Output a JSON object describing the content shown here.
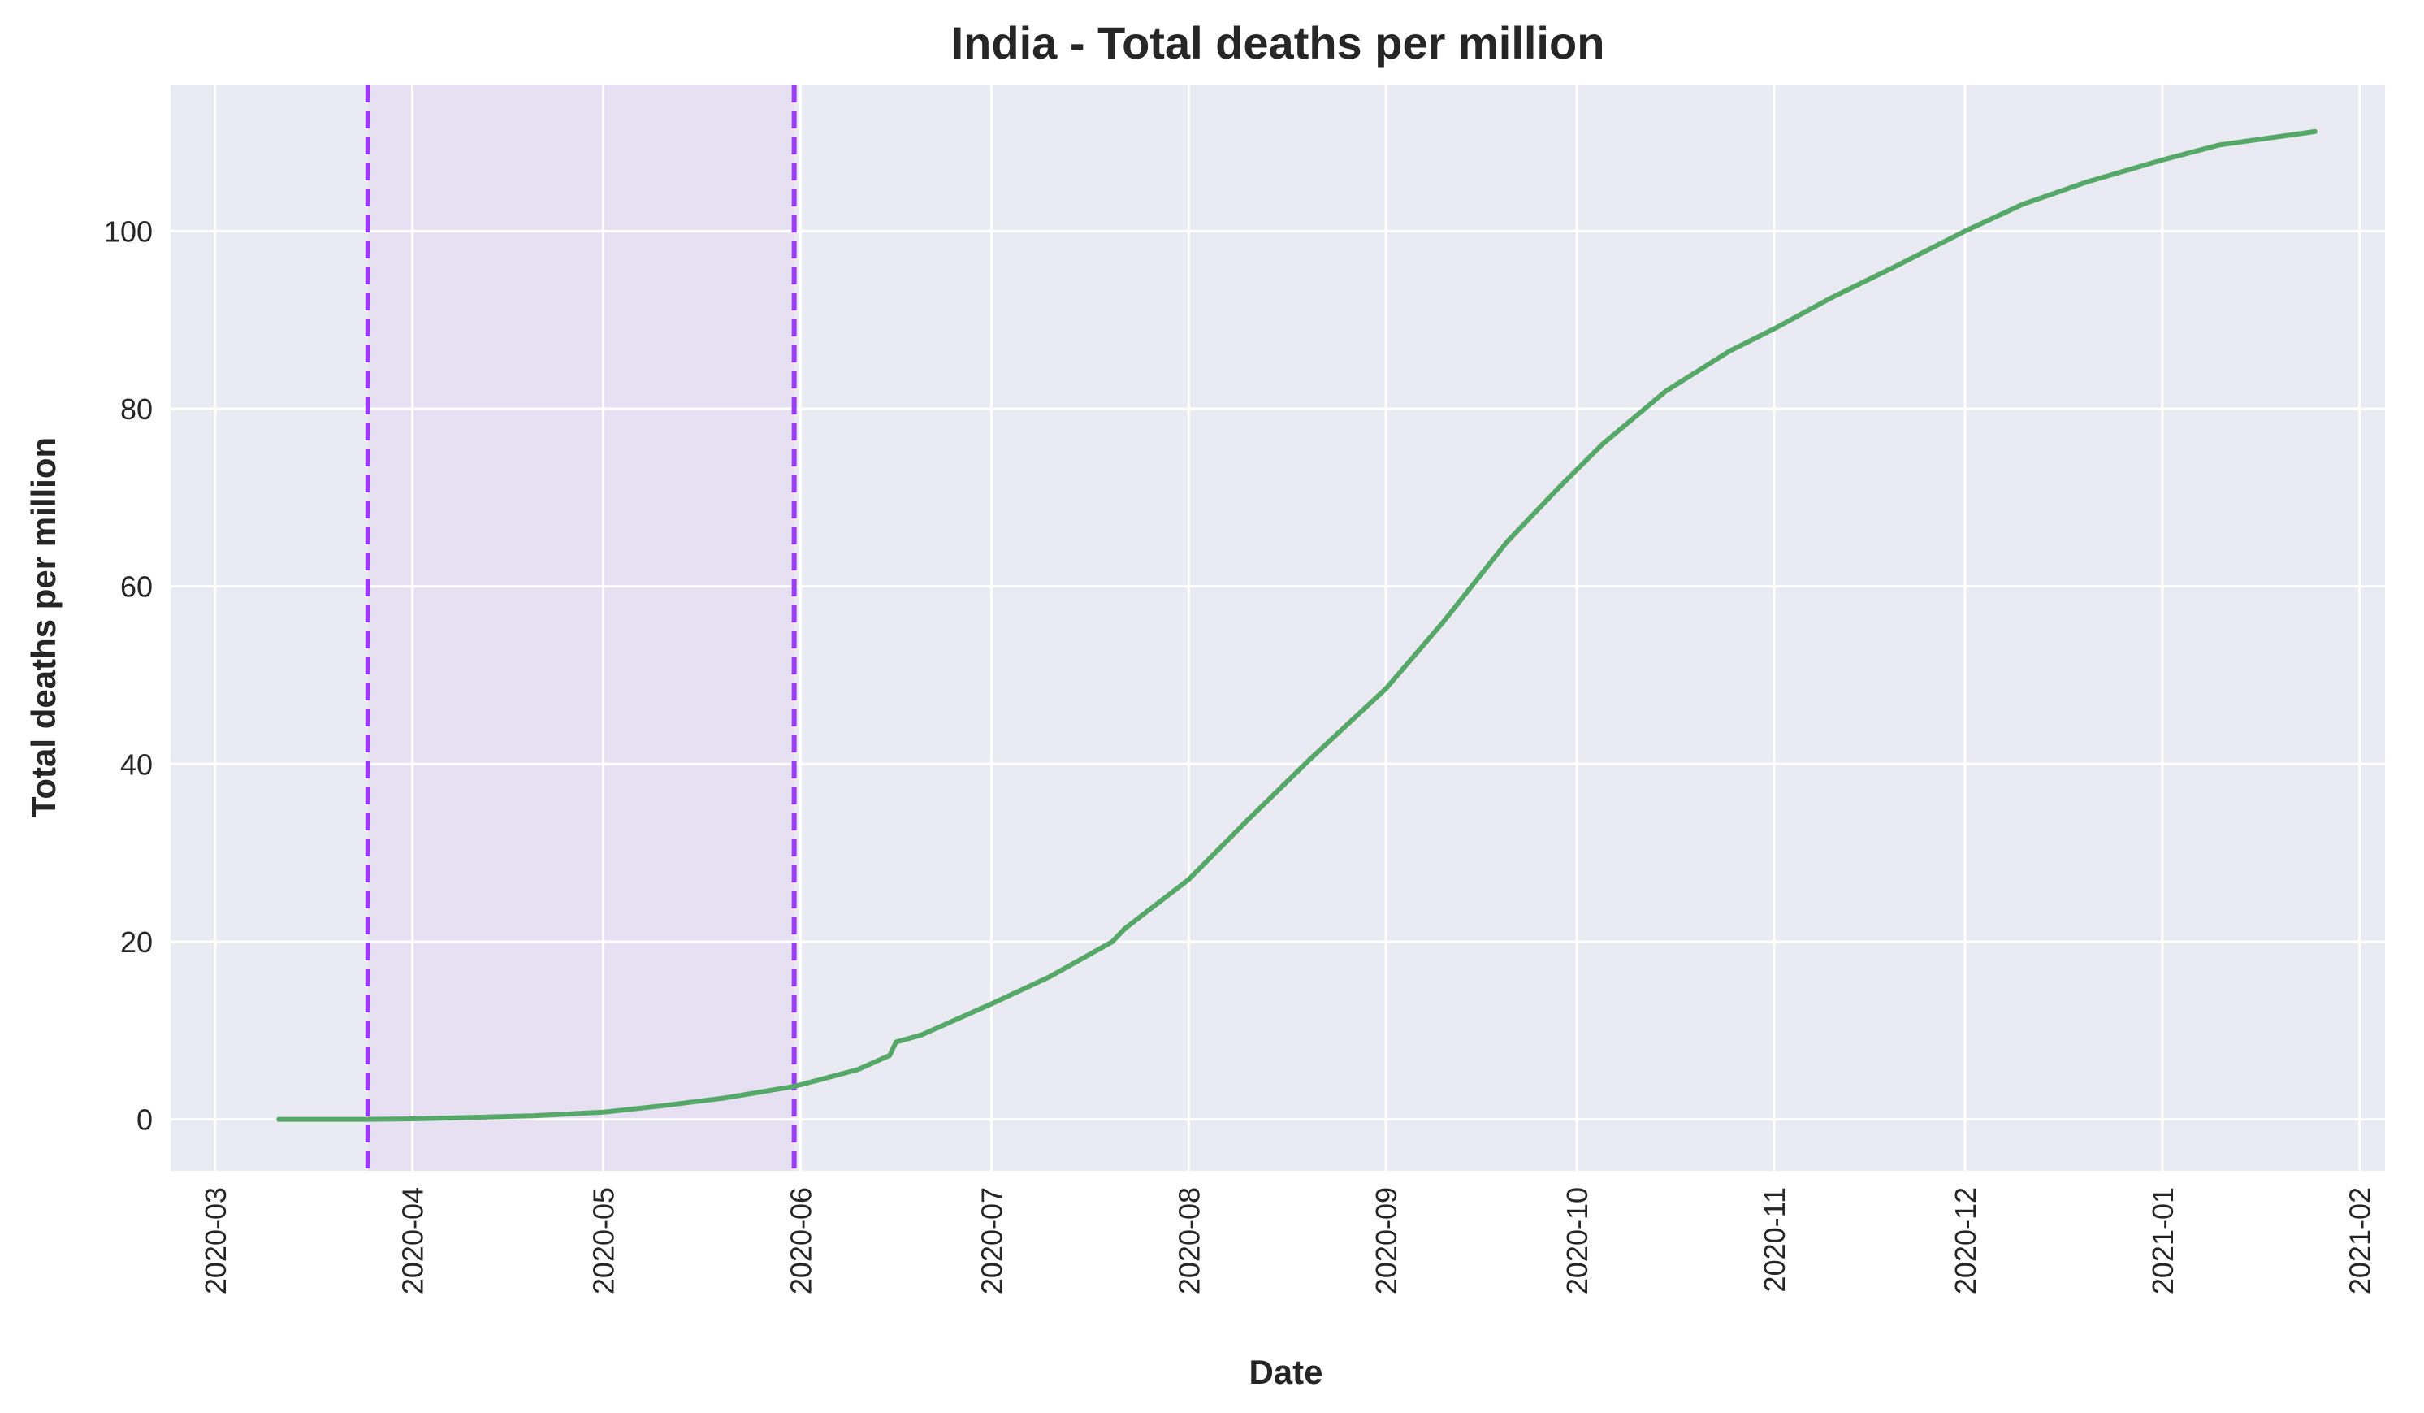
{
  "chart_data": {
    "type": "line",
    "title": "India - Total deaths per million",
    "xlabel": "Date",
    "ylabel": "Total deaths per million",
    "x_ticks": [
      "2020-03",
      "2020-04",
      "2020-05",
      "2020-06",
      "2020-07",
      "2020-08",
      "2020-09",
      "2020-10",
      "2020-11",
      "2020-12",
      "2021-01",
      "2021-02"
    ],
    "y_ticks": [
      "0",
      "20",
      "40",
      "60",
      "80",
      "100"
    ],
    "xlim": [
      "2020-02-23",
      "2021-02-05"
    ],
    "ylim": [
      -5.8,
      116.5
    ],
    "grid": true,
    "shaded_region": {
      "start": "2020-03-25",
      "end": "2020-05-31",
      "color": "#e6e0f2"
    },
    "vlines": [
      {
        "x": "2020-03-25",
        "color": "#9b3bf5",
        "style": "dashed"
      },
      {
        "x": "2020-05-31",
        "color": "#9b3bf5",
        "style": "dashed"
      }
    ],
    "series": [
      {
        "color": "#55a868",
        "points": [
          [
            "2020-03-11",
            0.0
          ],
          [
            "2020-03-25",
            0.0
          ],
          [
            "2020-04-01",
            0.05
          ],
          [
            "2020-04-10",
            0.2
          ],
          [
            "2020-04-20",
            0.4
          ],
          [
            "2020-05-01",
            0.8
          ],
          [
            "2020-05-10",
            1.5
          ],
          [
            "2020-05-20",
            2.4
          ],
          [
            "2020-05-31",
            3.7
          ],
          [
            "2020-06-10",
            5.6
          ],
          [
            "2020-06-15",
            7.2
          ],
          [
            "2020-06-16",
            8.7
          ],
          [
            "2020-06-20",
            9.5
          ],
          [
            "2020-07-01",
            13.0
          ],
          [
            "2020-07-10",
            16.0
          ],
          [
            "2020-07-20",
            20.0
          ],
          [
            "2020-07-22",
            21.5
          ],
          [
            "2020-08-01",
            27.0
          ],
          [
            "2020-08-10",
            33.5
          ],
          [
            "2020-08-20",
            40.5
          ],
          [
            "2020-09-01",
            48.5
          ],
          [
            "2020-09-10",
            56.0
          ],
          [
            "2020-09-20",
            65.0
          ],
          [
            "2020-09-28",
            71.0
          ],
          [
            "2020-10-05",
            76.0
          ],
          [
            "2020-10-15",
            82.0
          ],
          [
            "2020-10-25",
            86.5
          ],
          [
            "2020-11-01",
            89.0
          ],
          [
            "2020-11-10",
            92.5
          ],
          [
            "2020-11-20",
            96.0
          ],
          [
            "2020-12-01",
            100.0
          ],
          [
            "2020-12-10",
            103.0
          ],
          [
            "2020-12-20",
            105.5
          ],
          [
            "2021-01-01",
            108.0
          ],
          [
            "2021-01-10",
            109.7
          ],
          [
            "2021-01-25",
            111.2
          ]
        ]
      }
    ]
  }
}
